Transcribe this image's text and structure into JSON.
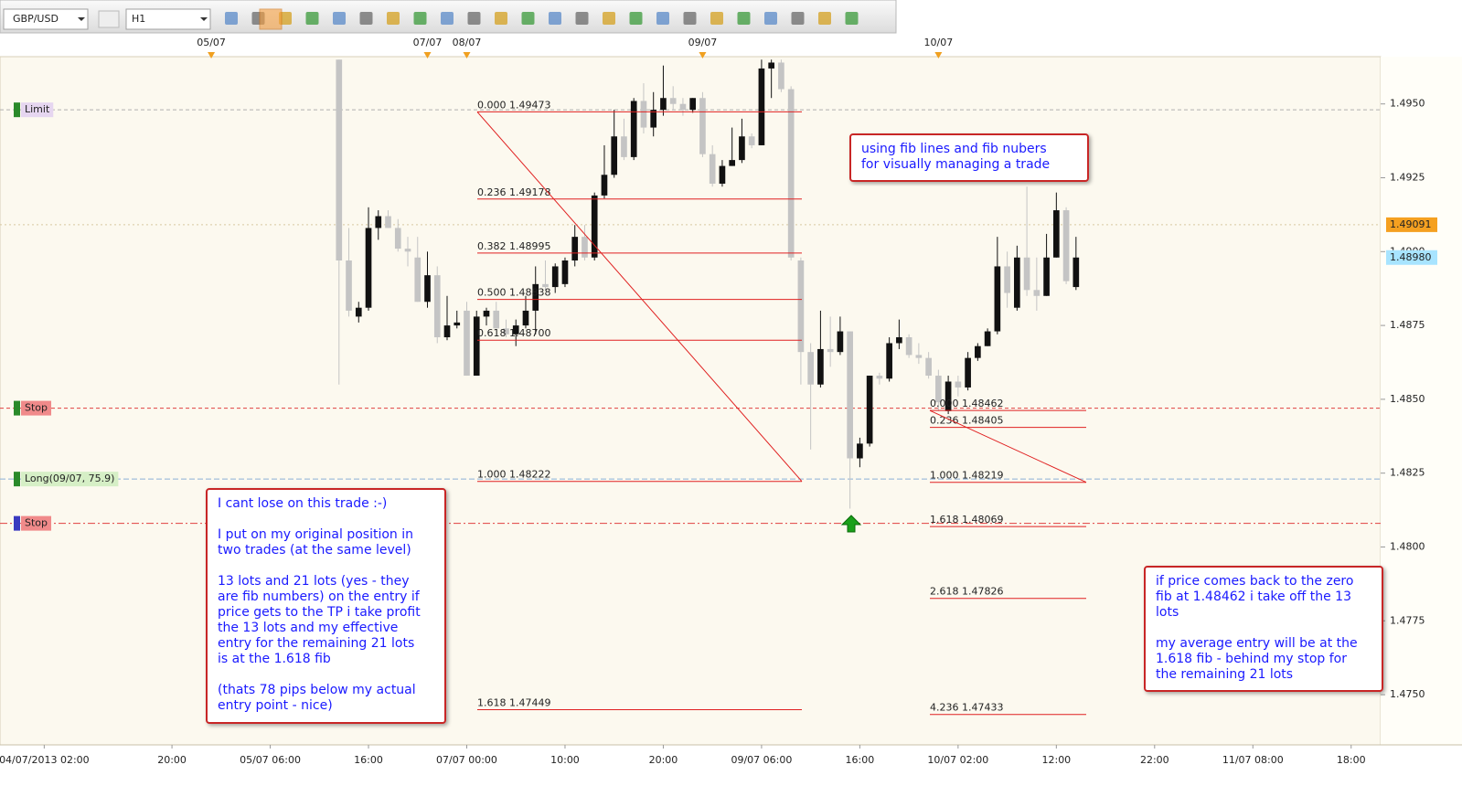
{
  "toolbar": {
    "symbol": "GBP/USD",
    "timeframe": "H1"
  },
  "chart_data": {
    "type": "candlestick",
    "up_color": "#111111",
    "down_color": "#c4c4c4",
    "grid": false,
    "xlim": [
      -4.5,
      136
    ],
    "ylim": [
      1.4733,
      1.4966
    ],
    "yticks": [
      {
        "value": 1.475,
        "label": "1.4750"
      },
      {
        "value": 1.4775,
        "label": "1.4775"
      },
      {
        "value": 1.48,
        "label": "1.4800"
      },
      {
        "value": 1.4825,
        "label": "1.4825"
      },
      {
        "value": 1.485,
        "label": "1.4850"
      },
      {
        "value": 1.4875,
        "label": "1.4875"
      },
      {
        "value": 1.49,
        "label": "1.4900"
      },
      {
        "value": 1.4925,
        "label": "1.4925"
      },
      {
        "value": 1.495,
        "label": "1.4950"
      }
    ],
    "xticks": [
      {
        "value": 0,
        "label": "04/07/2013 02:00"
      },
      {
        "value": 13,
        "label": "20:00"
      },
      {
        "value": 23,
        "label": "05/07 06:00"
      },
      {
        "value": 33,
        "label": "16:00"
      },
      {
        "value": 43,
        "label": "07/07 00:00"
      },
      {
        "value": 53,
        "label": "10:00"
      },
      {
        "value": 63,
        "label": "20:00"
      },
      {
        "value": 73,
        "label": "09/07 06:00"
      },
      {
        "value": 83,
        "label": "16:00"
      },
      {
        "value": 93,
        "label": "10/07 02:00"
      },
      {
        "value": 103,
        "label": "12:00"
      },
      {
        "value": 113,
        "label": "22:00"
      },
      {
        "value": 123,
        "label": "11/07 08:00"
      },
      {
        "value": 133,
        "label": "18:00"
      }
    ],
    "date_markers": [
      {
        "value": 17,
        "label": "05/07"
      },
      {
        "value": 39,
        "label": "07/07"
      },
      {
        "value": 43,
        "label": "08/07"
      },
      {
        "value": 67,
        "label": "09/07"
      },
      {
        "value": 91,
        "label": "10/07"
      }
    ],
    "x": [
      30,
      31,
      32,
      33,
      34,
      35,
      36,
      37,
      38,
      39,
      40,
      41,
      42,
      43,
      44,
      45,
      46,
      47,
      48,
      49,
      50,
      51,
      52,
      53,
      54,
      55,
      56,
      57,
      58,
      59,
      60,
      61,
      62,
      63,
      64,
      65,
      66,
      67,
      68,
      69,
      70,
      71,
      72,
      73,
      74,
      75,
      76,
      77,
      78,
      79,
      80,
      81,
      82,
      83,
      84,
      85,
      86,
      87,
      88,
      89,
      90,
      91,
      92,
      93,
      94,
      95,
      96,
      97,
      98,
      99,
      100,
      101,
      102,
      103,
      104,
      105
    ],
    "open": [
      1.4965,
      1.4897,
      1.4878,
      1.4881,
      1.4908,
      1.4912,
      1.4908,
      1.4901,
      1.4898,
      1.4883,
      1.4892,
      1.4871,
      1.4875,
      1.488,
      1.4858,
      1.4878,
      1.488,
      1.4874,
      1.4872,
      1.4875,
      1.488,
      1.4889,
      1.4888,
      1.4889,
      1.4897,
      1.4905,
      1.4898,
      1.4919,
      1.4926,
      1.4939,
      1.4932,
      1.4951,
      1.4942,
      1.4948,
      1.4952,
      1.495,
      1.4948,
      1.4952,
      1.4933,
      1.4923,
      1.4929,
      1.4931,
      1.4939,
      1.4936,
      1.4962,
      1.4964,
      1.4955,
      1.4897,
      1.4866,
      1.4855,
      1.4867,
      1.4866,
      1.4873,
      1.483,
      1.4835,
      1.4858,
      1.4857,
      1.4869,
      1.4871,
      1.4865,
      1.4864,
      1.4858,
      1.4846,
      1.4856,
      1.4854,
      1.4864,
      1.4868,
      1.4873,
      1.4895,
      1.4881,
      1.4898,
      1.4887,
      1.4885,
      1.4898,
      1.4914,
      1.4888
    ],
    "high": [
      1.4965,
      1.4908,
      1.4883,
      1.4915,
      1.4914,
      1.4914,
      1.4911,
      1.4905,
      1.4905,
      1.49,
      1.4895,
      1.4885,
      1.488,
      1.4883,
      1.488,
      1.4881,
      1.4883,
      1.4877,
      1.4877,
      1.4885,
      1.4895,
      1.4897,
      1.4896,
      1.4898,
      1.4909,
      1.4909,
      1.492,
      1.4936,
      1.4948,
      1.4945,
      1.4952,
      1.4957,
      1.4954,
      1.4963,
      1.4956,
      1.4952,
      1.4952,
      1.4954,
      1.4936,
      1.4931,
      1.4942,
      1.4945,
      1.494,
      1.4965,
      1.4965,
      1.4965,
      1.4956,
      1.4898,
      1.4869,
      1.488,
      1.4878,
      1.4878,
      1.4873,
      1.4837,
      1.4858,
      1.4859,
      1.4871,
      1.4877,
      1.4872,
      1.4869,
      1.4866,
      1.486,
      1.4858,
      1.4858,
      1.4866,
      1.4869,
      1.4874,
      1.4905,
      1.49,
      1.4902,
      1.4922,
      1.4898,
      1.4906,
      1.492,
      1.4915,
      1.4905
    ],
    "low": [
      1.4855,
      1.4878,
      1.4876,
      1.488,
      1.4904,
      1.4908,
      1.49,
      1.4895,
      1.4883,
      1.4881,
      1.4869,
      1.487,
      1.4874,
      1.4858,
      1.4858,
      1.4875,
      1.4874,
      1.4871,
      1.4868,
      1.4874,
      1.4872,
      1.4887,
      1.4886,
      1.4888,
      1.4895,
      1.4897,
      1.4897,
      1.4918,
      1.4925,
      1.4931,
      1.4931,
      1.494,
      1.4939,
      1.4946,
      1.4948,
      1.4946,
      1.4947,
      1.4932,
      1.4922,
      1.4922,
      1.4929,
      1.493,
      1.4935,
      1.4936,
      1.4952,
      1.4954,
      1.4897,
      1.4855,
      1.4833,
      1.4854,
      1.4861,
      1.4865,
      1.4813,
      1.4827,
      1.4834,
      1.4855,
      1.4856,
      1.4867,
      1.4864,
      1.4862,
      1.4857,
      1.4846,
      1.4845,
      1.4851,
      1.4853,
      1.4863,
      1.4868,
      1.4872,
      1.4881,
      1.488,
      1.4885,
      1.488,
      1.4885,
      1.4898,
      1.4889,
      1.4887
    ],
    "close": [
      1.4897,
      1.488,
      1.4881,
      1.4908,
      1.4912,
      1.4908,
      1.4901,
      1.49,
      1.4883,
      1.4892,
      1.4871,
      1.4875,
      1.4876,
      1.4858,
      1.4878,
      1.488,
      1.4874,
      1.4872,
      1.4875,
      1.488,
      1.4889,
      1.4888,
      1.4895,
      1.4897,
      1.4905,
      1.4898,
      1.4919,
      1.4926,
      1.4939,
      1.4932,
      1.4951,
      1.4942,
      1.4948,
      1.4952,
      1.495,
      1.4948,
      1.4952,
      1.4933,
      1.4923,
      1.4929,
      1.4931,
      1.4939,
      1.4936,
      1.4962,
      1.4964,
      1.4955,
      1.4898,
      1.4866,
      1.4855,
      1.4867,
      1.4866,
      1.4873,
      1.483,
      1.4835,
      1.4858,
      1.4857,
      1.4869,
      1.4871,
      1.4865,
      1.4864,
      1.4858,
      1.4849,
      1.4856,
      1.4854,
      1.4864,
      1.4868,
      1.4873,
      1.4895,
      1.4886,
      1.4898,
      1.4887,
      1.4885,
      1.4898,
      1.4914,
      1.489,
      1.4898
    ],
    "fibs": [
      {
        "color": "#e02020",
        "levels": [
          {
            "value": 1.49473,
            "label": "0.000 1.49473"
          },
          {
            "value": 1.49178,
            "label": "0.236 1.49178"
          },
          {
            "value": 1.48995,
            "label": "0.382 1.48995"
          },
          {
            "value": 1.48838,
            "label": "0.500 1.48838"
          },
          {
            "value": 1.487,
            "label": "0.618 1.48700"
          },
          {
            "value": 1.48222,
            "label": "1.000 1.48222"
          },
          {
            "value": 1.47449,
            "label": "1.618 1.47449"
          }
        ]
      },
      {
        "color": "#e02020",
        "levels": [
          {
            "value": 1.48462,
            "label": "0.000 1.48462"
          },
          {
            "value": 1.48405,
            "label": "0.236 1.48405"
          },
          {
            "value": 1.48219,
            "label": "1.000 1.48219"
          },
          {
            "value": 1.48069,
            "label": "1.618 1.48069"
          },
          {
            "value": 1.47826,
            "label": "2.618 1.47826"
          },
          {
            "value": 1.47433,
            "label": "4.236 1.47433"
          }
        ]
      }
    ],
    "orders": [
      {
        "label": "Limit",
        "value": 1.4948,
        "line_color": "#b0b0b0",
        "box_color": "#e6d6f0",
        "text_color": "#a070c8",
        "dash": "4 3"
      },
      {
        "label": "Stop",
        "value": 1.4847,
        "line_color": "#e04040",
        "box_color": "#f08a8a",
        "text_color": "#a01818",
        "dash": "4 3"
      },
      {
        "label": "Long(09/07, 75.9)",
        "value": 1.4823,
        "line_color": "#8ab0d8",
        "box_color": "#d6efc6",
        "text_color": "#7a8a7a",
        "dash": "6 3"
      },
      {
        "label": "Stop",
        "value": 1.4808,
        "line_color": "#e04040",
        "box_color": "#f08a8a",
        "text_color": "#a01818",
        "dash": "8 3 2 3"
      }
    ],
    "price_tags": [
      {
        "value": 1.49091,
        "label": "1.49091",
        "color": "#f5a020"
      },
      {
        "value": 1.4898,
        "label": "1.48980",
        "color": "#a8e4ff"
      }
    ]
  },
  "annotations": [
    {
      "paragraphs": [
        [
          "using fib lines and fib nubers",
          "for visually managing a trade"
        ]
      ]
    },
    {
      "paragraphs": [
        [
          "I cant lose on this trade :-)"
        ],
        [
          "I put on my original position in",
          "two trades (at the same level)"
        ],
        [
          "13 lots and 21 lots (yes - they",
          "are fib numbers) on the entry if",
          "price gets to the TP i take profit",
          "the 13 lots and my effective",
          "entry for the remaining 21 lots",
          "is at the 1.618 fib"
        ],
        [
          "(thats 78 pips below my actual",
          "entry point - nice)"
        ]
      ]
    },
    {
      "paragraphs": [
        [
          "if price comes back to the zero",
          "fib at 1.48462 i take off the 13",
          "lots"
        ],
        [
          "my average entry will be at the",
          "1.618 fib - behind my stop for",
          "the remaining 21 lots"
        ]
      ]
    }
  ]
}
